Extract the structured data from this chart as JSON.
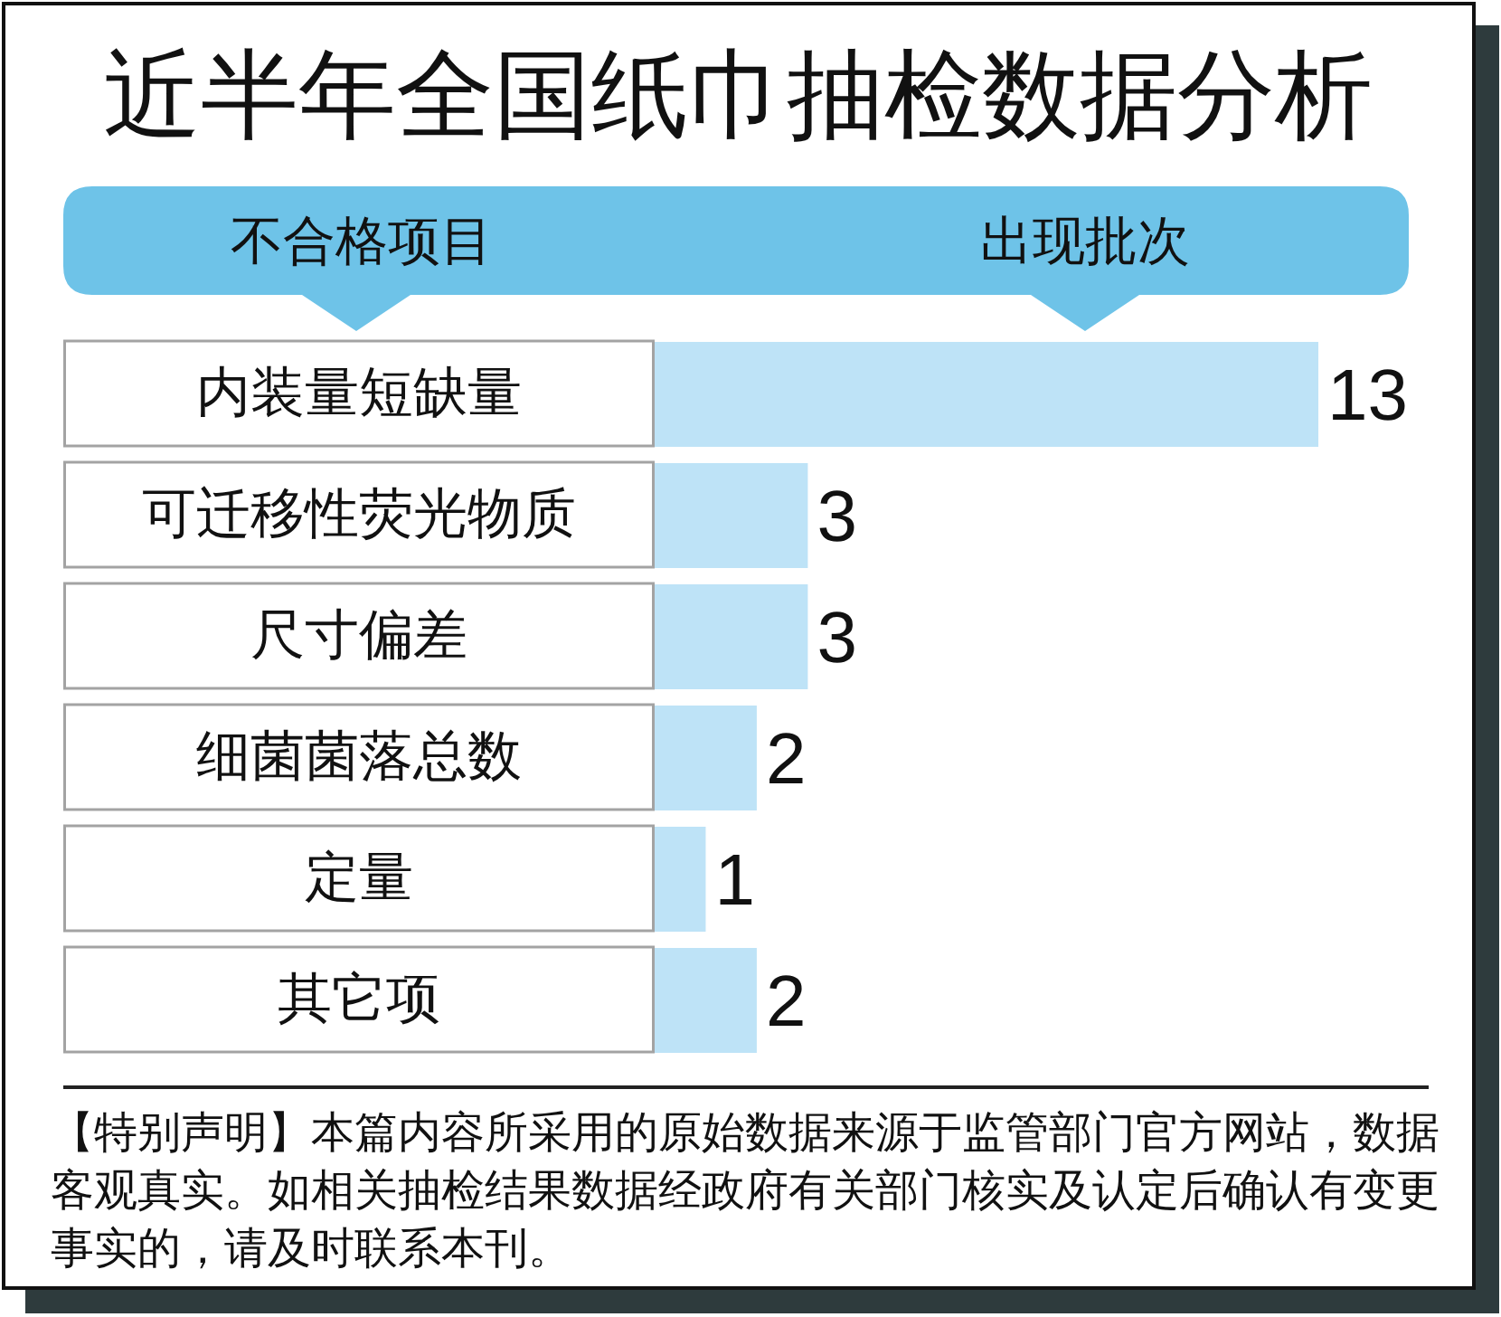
{
  "chart_data": {
    "type": "bar",
    "orientation": "horizontal",
    "title": "近半年全国纸巾抽检数据分析",
    "ylabel": "不合格项目",
    "xlabel": "出现批次",
    "categories": [
      "内装量短缺量",
      "可迁移性荧光物质",
      "尺寸偏差",
      "细菌菌落总数",
      "定量",
      "其它项"
    ],
    "values": [
      13,
      3,
      3,
      2,
      1,
      2
    ],
    "color": "#bee3f7",
    "data_labels": true,
    "annotations": [
      "【特别声明】本篇内容所采用的原始数据来源于监管部门官方网站，数据客观真实。如相关抽检结果数据经政府有关部门核实及认定后确认有变更事实的，请及时联系本刊。"
    ]
  }
}
